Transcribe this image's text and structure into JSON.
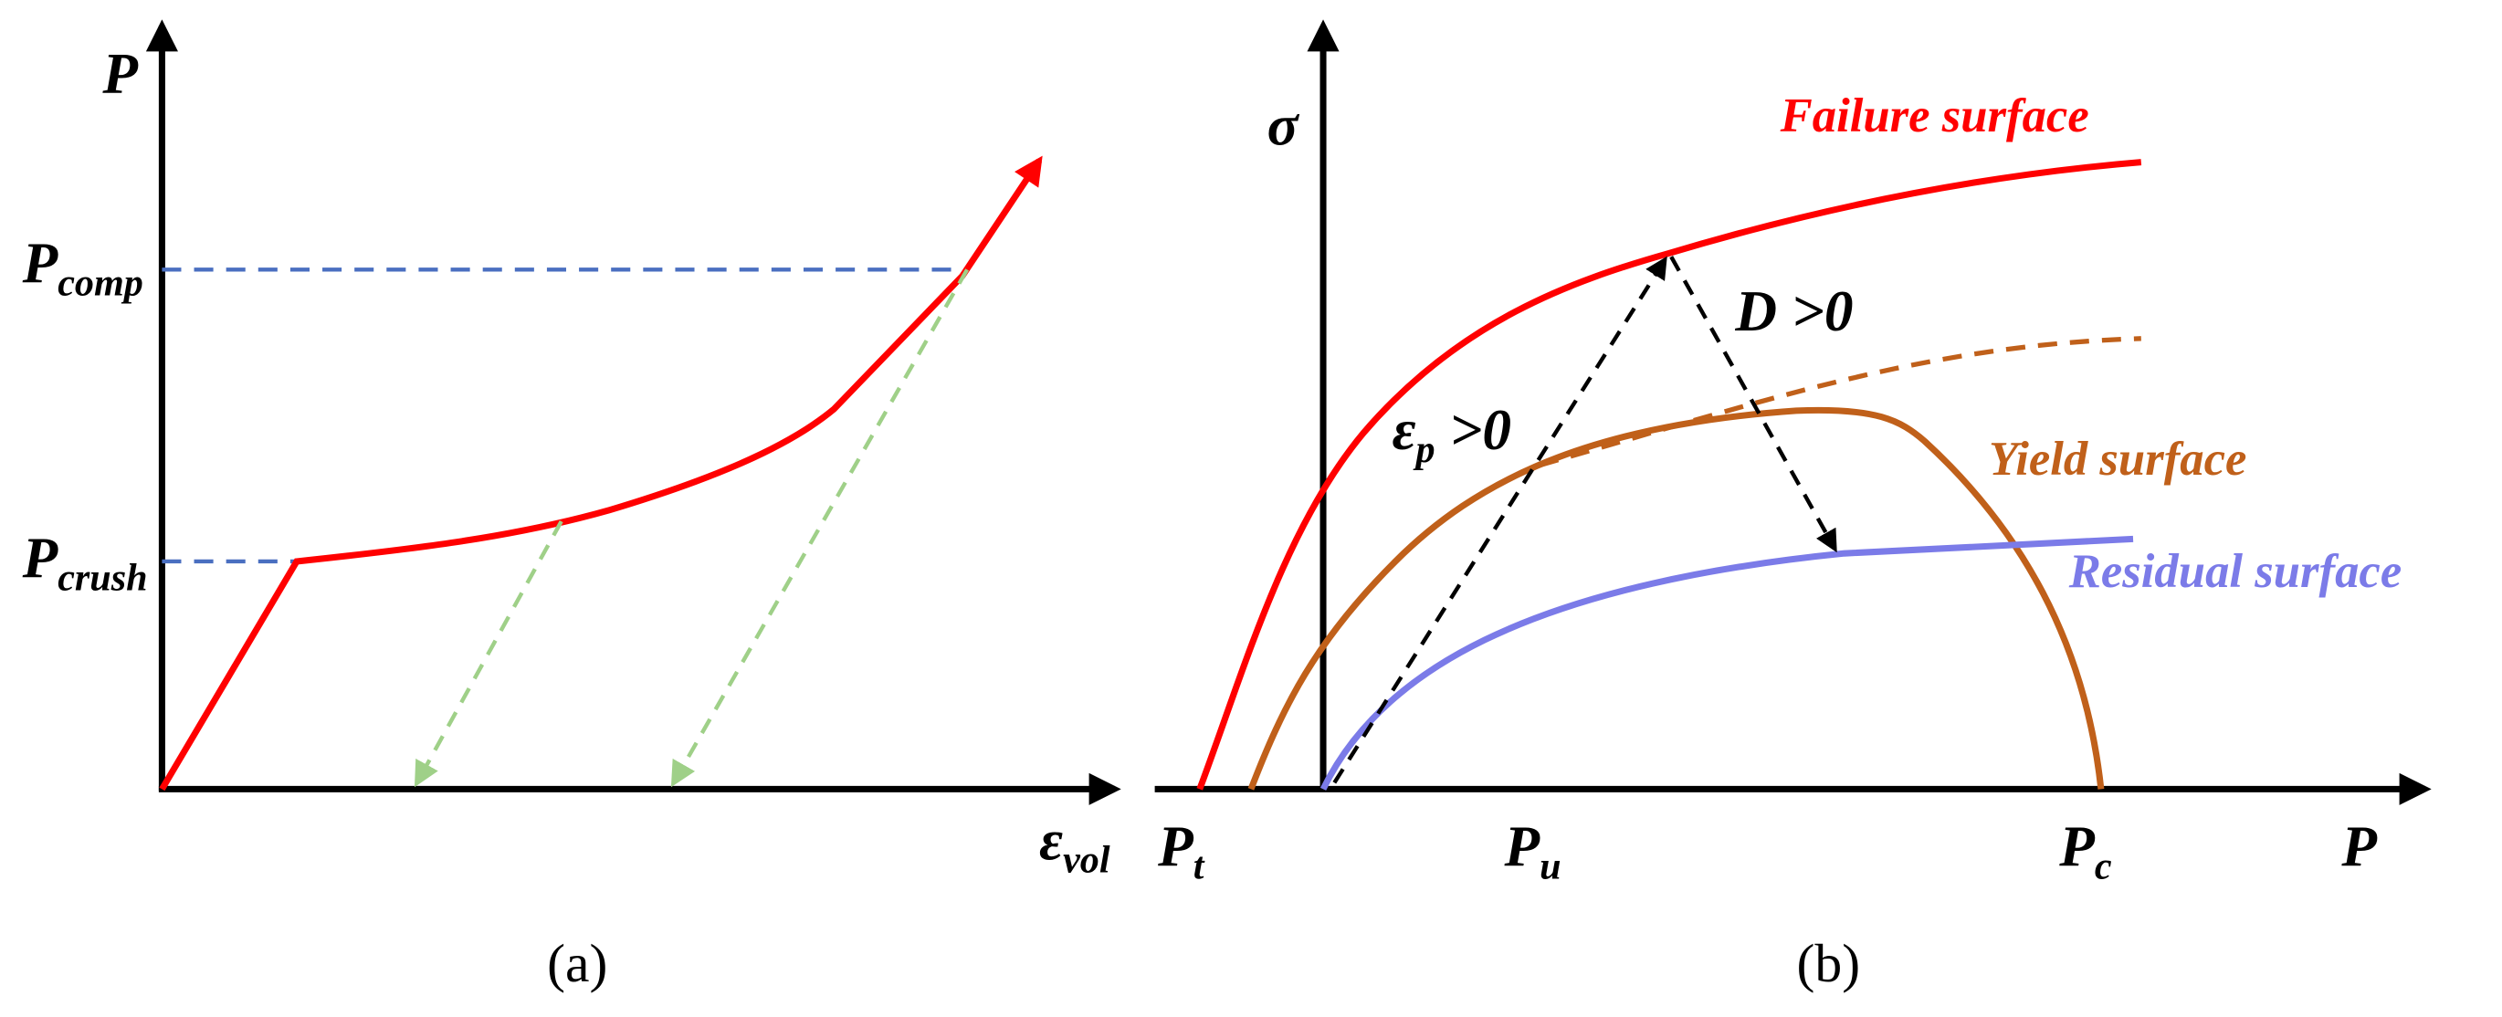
{
  "panel_a": {
    "y_axis": {
      "symbol": "P"
    },
    "levels": [
      {
        "symbol": "P",
        "sub": "comp"
      },
      {
        "symbol": "P",
        "sub": "crush"
      }
    ],
    "x_axis": {
      "symbol": "ε",
      "sub": "vol"
    },
    "caption": "(a)"
  },
  "panel_b": {
    "y_axis": {
      "symbol": "σ"
    },
    "x_axis": {
      "symbol": "P"
    },
    "x_points": [
      {
        "symbol": "P",
        "sub": "t"
      },
      {
        "symbol": "P",
        "sub": "u"
      },
      {
        "symbol": "P",
        "sub": "c"
      }
    ],
    "curves": {
      "failure": "Failure surface",
      "yield": "Yield surface",
      "residual": "Residual surface"
    },
    "annotations": {
      "damage": "D >0",
      "strain": {
        "symbol": "ε",
        "sub": "p",
        "rest": " >0"
      }
    },
    "caption": "(b)"
  }
}
